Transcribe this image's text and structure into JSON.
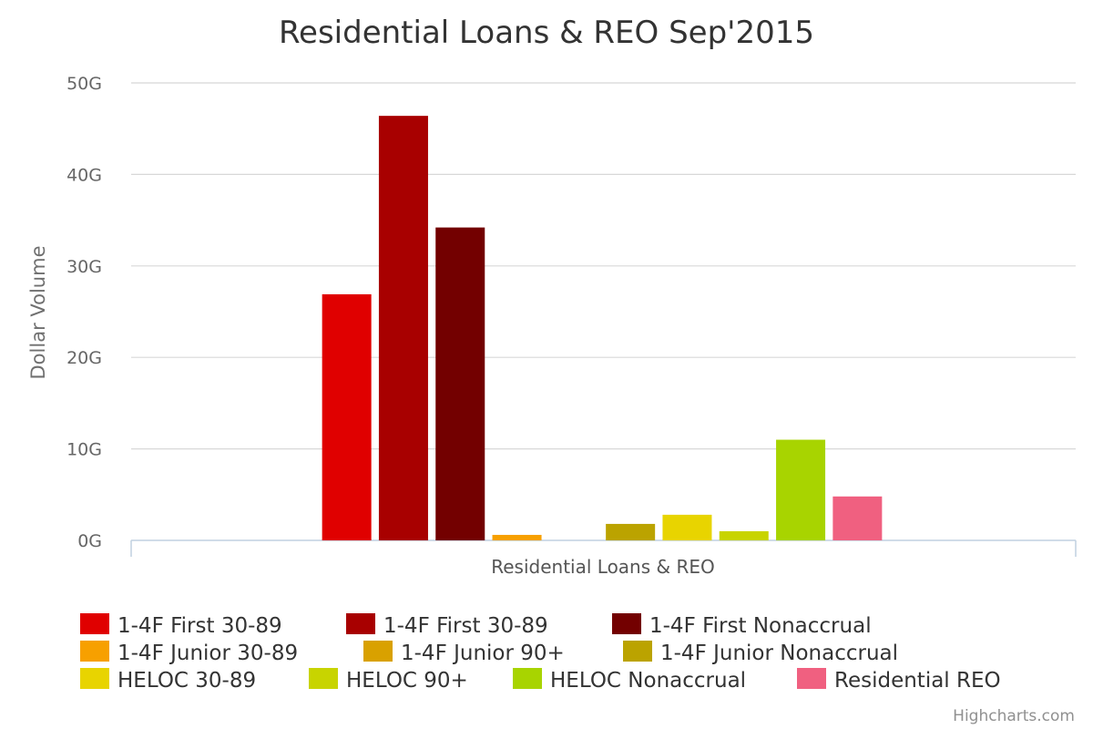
{
  "chart_data": {
    "type": "bar",
    "title": "Residential Loans & REO Sep'2015",
    "ylabel": "Dollar Volume",
    "ylim": [
      0,
      50
    ],
    "yticks": [
      "0G",
      "10G",
      "20G",
      "30G",
      "40G",
      "50G"
    ],
    "categories": [
      "Residential Loans & REO"
    ],
    "grid": true,
    "legend_position": "bottom",
    "series": [
      {
        "name": "1-4F First 30-89",
        "color": "#e00000",
        "values": [
          26.9
        ]
      },
      {
        "name": "1-4F First 30-89",
        "color": "#a80000",
        "values": [
          46.4
        ]
      },
      {
        "name": "1-4F First Nonaccrual",
        "color": "#730000",
        "values": [
          34.2
        ]
      },
      {
        "name": "1-4F Junior 30-89",
        "color": "#f7a000",
        "values": [
          0.6
        ]
      },
      {
        "name": "1-4F Junior 90+",
        "color": "#d9a100",
        "values": [
          0
        ]
      },
      {
        "name": "1-4F Junior Nonaccrual",
        "color": "#bba300",
        "values": [
          1.8
        ]
      },
      {
        "name": "HELOC 30-89",
        "color": "#e8d400",
        "values": [
          2.8
        ]
      },
      {
        "name": "HELOC 90+",
        "color": "#c8d400",
        "values": [
          1.0
        ]
      },
      {
        "name": "HELOC Nonaccrual",
        "color": "#a8d400",
        "values": [
          11.0
        ]
      },
      {
        "name": "Residential REO",
        "color": "#f06080",
        "values": [
          4.8
        ]
      }
    ]
  },
  "credits": "Highcharts.com"
}
